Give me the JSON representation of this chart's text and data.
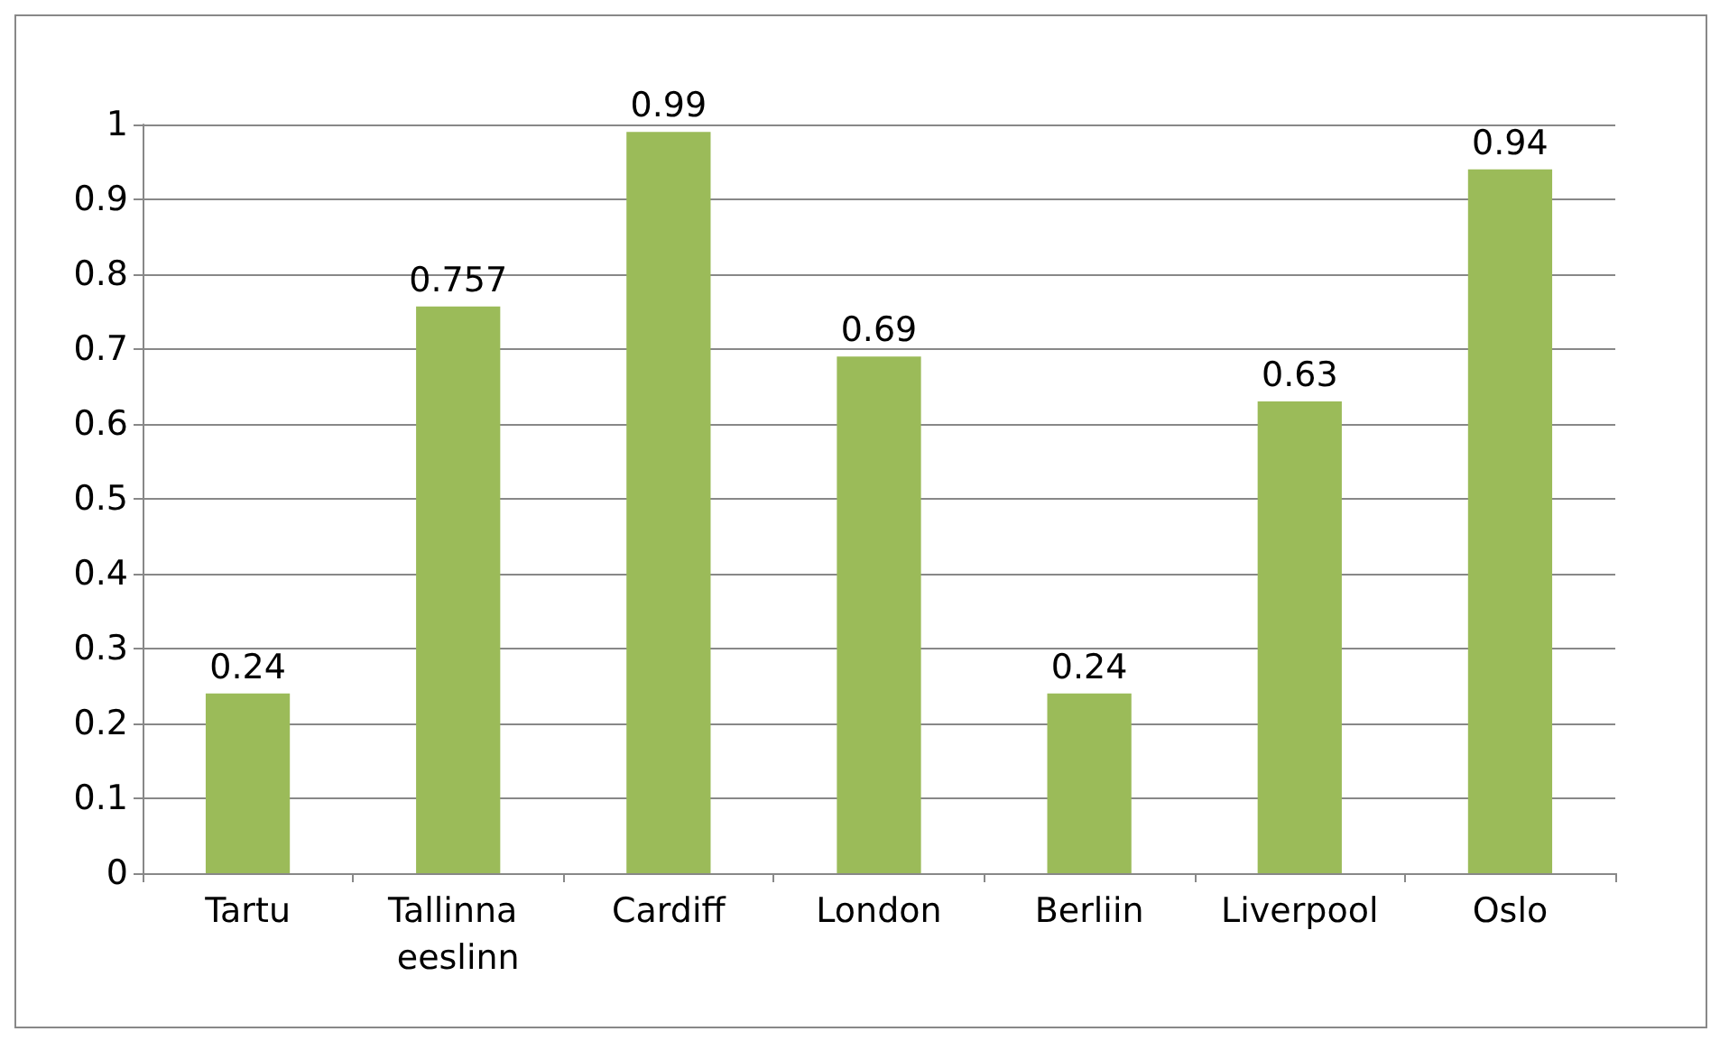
{
  "chart_data": {
    "type": "bar",
    "categories": [
      "Tartu",
      "Tallinna eeslinn",
      "Cardiff",
      "London",
      "Berliin",
      "Liverpool",
      "Oslo"
    ],
    "values": [
      0.24,
      0.757,
      0.99,
      0.69,
      0.24,
      0.63,
      0.94
    ],
    "color": "#9bbb59",
    "ylim": [
      0,
      1
    ],
    "yticks": [
      0,
      0.1,
      0.2,
      0.3,
      0.4,
      0.5,
      0.6,
      0.7,
      0.8,
      0.9,
      1
    ],
    "grid": "y",
    "data_labels": true
  }
}
